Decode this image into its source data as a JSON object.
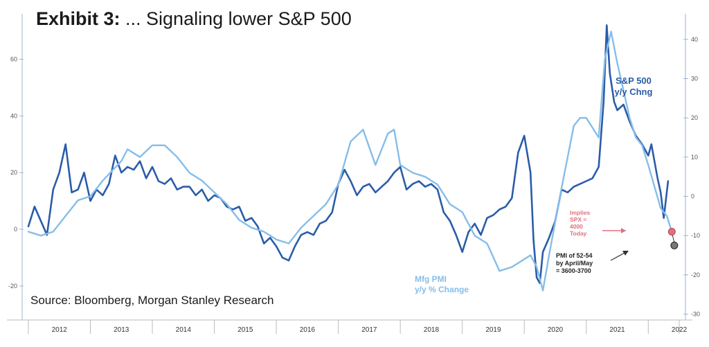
{
  "title_prefix": "Exhibit 3:",
  "title_text": "... Signaling lower S&P 500",
  "source": "Source: Bloomberg, Morgan Stanley Research",
  "colors": {
    "spx": "#2a5ca8",
    "pmi": "#86bde8",
    "implied": "#e0707e",
    "pmi_point": "#777777",
    "axis": "#9ab6d6"
  },
  "chart_data": {
    "type": "line",
    "x_tick_labels": [
      "2012",
      "2013",
      "2014",
      "2015",
      "2016",
      "2017",
      "2018",
      "2019",
      "2020",
      "2021",
      "2022"
    ],
    "left_axis": {
      "ticks": [
        60,
        40,
        20,
        0,
        -20
      ],
      "range": [
        -32,
        76
      ]
    },
    "right_axis": {
      "ticks": [
        40,
        30,
        20,
        10,
        0,
        -10,
        -20,
        -30
      ],
      "range": [
        -31.5,
        46.5
      ]
    },
    "annotations": {
      "spx_label": [
        "S&P 500",
        "y/y Chng"
      ],
      "pmi_label": [
        "Mfg PMI",
        "y/y % Change"
      ],
      "implied_label": [
        "Implies",
        "SPX =",
        "4000",
        "Today"
      ],
      "pmi_target_label": [
        "PMI of 52-54",
        "by April/May",
        "= 3600-3700"
      ]
    },
    "series": [
      {
        "key": "spx",
        "axis": "left",
        "points": [
          [
            2012.0,
            1
          ],
          [
            2012.1,
            8
          ],
          [
            2012.2,
            3
          ],
          [
            2012.3,
            -2
          ],
          [
            2012.4,
            14
          ],
          [
            2012.5,
            20
          ],
          [
            2012.6,
            30
          ],
          [
            2012.7,
            13
          ],
          [
            2012.8,
            14
          ],
          [
            2012.9,
            20
          ],
          [
            2013.0,
            10
          ],
          [
            2013.1,
            14
          ],
          [
            2013.2,
            12
          ],
          [
            2013.3,
            16
          ],
          [
            2013.4,
            26
          ],
          [
            2013.5,
            20
          ],
          [
            2013.6,
            22
          ],
          [
            2013.7,
            21
          ],
          [
            2013.8,
            24
          ],
          [
            2013.9,
            18
          ],
          [
            2014.0,
            22
          ],
          [
            2014.1,
            17
          ],
          [
            2014.2,
            16
          ],
          [
            2014.3,
            18
          ],
          [
            2014.4,
            14
          ],
          [
            2014.5,
            15
          ],
          [
            2014.6,
            15
          ],
          [
            2014.7,
            12
          ],
          [
            2014.8,
            14
          ],
          [
            2014.9,
            10
          ],
          [
            2015.0,
            12
          ],
          [
            2015.1,
            11
          ],
          [
            2015.2,
            8
          ],
          [
            2015.3,
            7
          ],
          [
            2015.4,
            8
          ],
          [
            2015.5,
            3
          ],
          [
            2015.6,
            4
          ],
          [
            2015.7,
            1
          ],
          [
            2015.8,
            -5
          ],
          [
            2015.9,
            -3
          ],
          [
            2016.0,
            -6
          ],
          [
            2016.1,
            -10
          ],
          [
            2016.2,
            -11
          ],
          [
            2016.3,
            -6
          ],
          [
            2016.4,
            -2
          ],
          [
            2016.5,
            -1
          ],
          [
            2016.6,
            -2
          ],
          [
            2016.7,
            2
          ],
          [
            2016.8,
            3
          ],
          [
            2016.9,
            6
          ],
          [
            2017.0,
            16
          ],
          [
            2017.1,
            21
          ],
          [
            2017.2,
            17
          ],
          [
            2017.3,
            12
          ],
          [
            2017.4,
            15
          ],
          [
            2017.5,
            16
          ],
          [
            2017.6,
            13
          ],
          [
            2017.7,
            15
          ],
          [
            2017.8,
            17
          ],
          [
            2017.9,
            20
          ],
          [
            2018.0,
            22
          ],
          [
            2018.1,
            14
          ],
          [
            2018.2,
            16
          ],
          [
            2018.3,
            17
          ],
          [
            2018.4,
            15
          ],
          [
            2018.5,
            16
          ],
          [
            2018.6,
            14
          ],
          [
            2018.7,
            6
          ],
          [
            2018.8,
            3
          ],
          [
            2018.9,
            -2
          ],
          [
            2019.0,
            -8
          ],
          [
            2019.1,
            -1
          ],
          [
            2019.2,
            2
          ],
          [
            2019.3,
            -2
          ],
          [
            2019.4,
            4
          ],
          [
            2019.5,
            5
          ],
          [
            2019.6,
            7
          ],
          [
            2019.7,
            8
          ],
          [
            2019.8,
            11
          ],
          [
            2019.9,
            27
          ],
          [
            2020.0,
            33
          ],
          [
            2020.1,
            20
          ],
          [
            2020.15,
            -4
          ],
          [
            2020.2,
            -17
          ],
          [
            2020.25,
            -19
          ],
          [
            2020.3,
            -8
          ],
          [
            2020.4,
            -3
          ],
          [
            2020.5,
            3
          ],
          [
            2020.6,
            14
          ],
          [
            2020.7,
            13
          ],
          [
            2020.8,
            15
          ],
          [
            2020.9,
            16
          ],
          [
            2021.0,
            17
          ],
          [
            2021.1,
            18
          ],
          [
            2021.2,
            22
          ],
          [
            2021.28,
            45
          ],
          [
            2021.33,
            72
          ],
          [
            2021.38,
            55
          ],
          [
            2021.45,
            45
          ],
          [
            2021.5,
            42
          ],
          [
            2021.6,
            44
          ],
          [
            2021.7,
            38
          ],
          [
            2021.8,
            33
          ],
          [
            2021.9,
            30
          ],
          [
            2022.0,
            26
          ],
          [
            2022.05,
            30
          ],
          [
            2022.15,
            18
          ],
          [
            2022.2,
            13
          ],
          [
            2022.25,
            4
          ],
          [
            2022.32,
            17
          ]
        ]
      },
      {
        "key": "pmi",
        "axis": "right",
        "points": [
          [
            2012.0,
            -9
          ],
          [
            2012.2,
            -10
          ],
          [
            2012.4,
            -9
          ],
          [
            2012.6,
            -5
          ],
          [
            2012.8,
            -1
          ],
          [
            2013.0,
            0
          ],
          [
            2013.2,
            4
          ],
          [
            2013.5,
            9
          ],
          [
            2013.6,
            12
          ],
          [
            2013.8,
            10
          ],
          [
            2014.0,
            13
          ],
          [
            2014.2,
            13
          ],
          [
            2014.4,
            10
          ],
          [
            2014.6,
            6
          ],
          [
            2014.8,
            4
          ],
          [
            2015.0,
            1
          ],
          [
            2015.2,
            -2
          ],
          [
            2015.4,
            -6
          ],
          [
            2015.6,
            -8
          ],
          [
            2015.8,
            -9
          ],
          [
            2016.0,
            -11
          ],
          [
            2016.2,
            -12
          ],
          [
            2016.4,
            -8
          ],
          [
            2016.6,
            -5
          ],
          [
            2016.8,
            -2
          ],
          [
            2017.0,
            3
          ],
          [
            2017.2,
            14
          ],
          [
            2017.4,
            17
          ],
          [
            2017.6,
            8
          ],
          [
            2017.8,
            16
          ],
          [
            2017.9,
            17
          ],
          [
            2018.0,
            8
          ],
          [
            2018.2,
            6
          ],
          [
            2018.4,
            5
          ],
          [
            2018.6,
            3
          ],
          [
            2018.8,
            -2
          ],
          [
            2019.0,
            -4
          ],
          [
            2019.2,
            -10
          ],
          [
            2019.4,
            -12
          ],
          [
            2019.6,
            -19
          ],
          [
            2019.8,
            -18
          ],
          [
            2020.0,
            -16
          ],
          [
            2020.1,
            -15
          ],
          [
            2020.2,
            -18
          ],
          [
            2020.3,
            -24
          ],
          [
            2020.4,
            -15
          ],
          [
            2020.6,
            2
          ],
          [
            2020.8,
            18
          ],
          [
            2020.9,
            20
          ],
          [
            2021.0,
            20
          ],
          [
            2021.2,
            15
          ],
          [
            2021.3,
            35
          ],
          [
            2021.4,
            42
          ],
          [
            2021.5,
            34
          ],
          [
            2021.6,
            27
          ],
          [
            2021.7,
            20
          ],
          [
            2021.8,
            15
          ],
          [
            2021.9,
            13
          ],
          [
            2022.0,
            8
          ],
          [
            2022.2,
            -3
          ],
          [
            2022.3,
            -5
          ],
          [
            2022.38,
            -9
          ]
        ]
      }
    ]
  }
}
